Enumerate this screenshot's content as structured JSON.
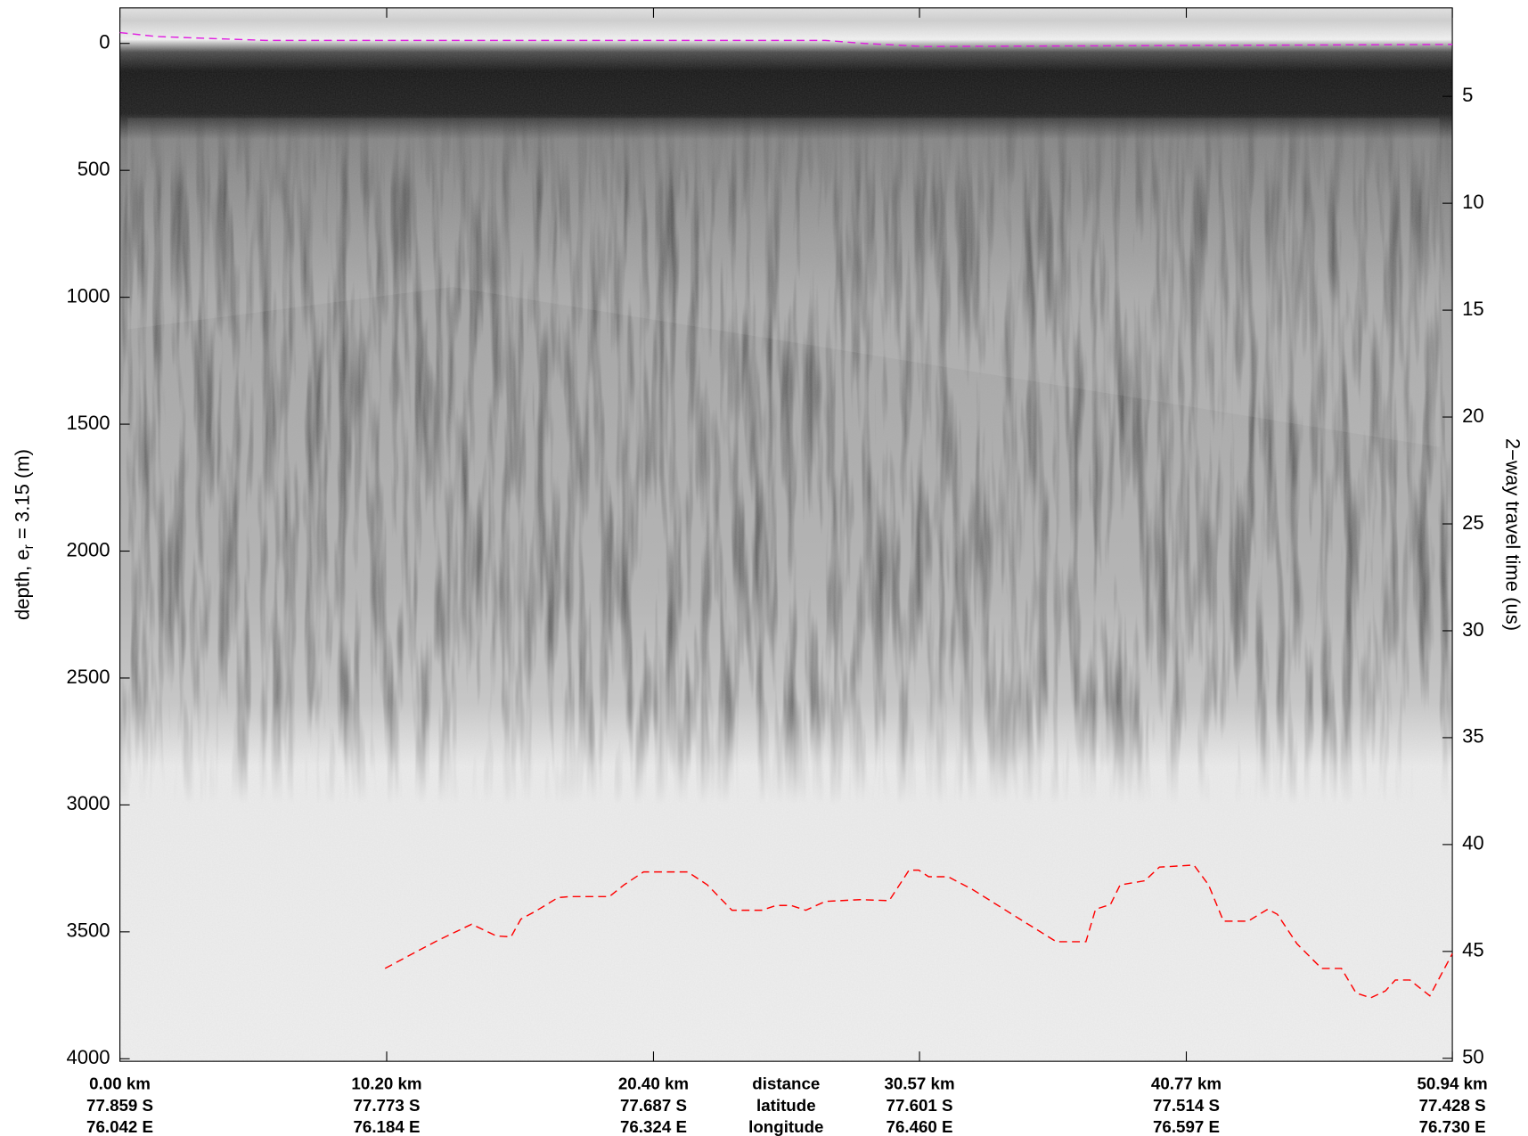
{
  "chart_data": {
    "type": "line",
    "ylabel": {
      "main": "depth, e",
      "sub": "r",
      "rest": " = 3.15 (m)"
    },
    "y2label": "2−way travel time (us)",
    "xlabel": [
      "distance",
      "latitude",
      "longitude"
    ],
    "xlim": [
      0,
      50.94
    ],
    "xticks": [
      {
        "value": 0,
        "label": "0.00 km"
      },
      {
        "value": 10.2,
        "label": "10.20 km"
      },
      {
        "value": 20.4,
        "label": "20.40 km"
      },
      {
        "value": 30.57,
        "label": "30.57 km"
      },
      {
        "value": 40.77,
        "label": "40.77 km"
      },
      {
        "value": 50.94,
        "label": "50.94 km"
      }
    ],
    "x_tick_latitudes": [
      "77.859 S",
      "77.773 S",
      "77.687 S",
      "77.601 S",
      "77.514 S",
      "77.428 S"
    ],
    "x_tick_longitudes": [
      "76.042 E",
      "76.184 E",
      "76.324 E",
      "76.460 E",
      "76.597 E",
      "76.730 E"
    ],
    "ylim": [
      -140,
      4010
    ],
    "y_inverted": true,
    "yticks": [
      0,
      500,
      1000,
      1500,
      2000,
      2500,
      3000,
      3500,
      4000
    ],
    "y2lim": [
      0.86,
      50.14
    ],
    "y2ticks": [
      5,
      10,
      15,
      20,
      25,
      30,
      35,
      40,
      45,
      50
    ],
    "series": [
      {
        "color": "#e020e0",
        "x": [
          0,
          1.43,
          5.56,
          26.97,
          28.47,
          30.73,
          50.94
        ],
        "values": [
          -43,
          -27,
          -12,
          -12,
          0,
          12,
          4
        ]
      },
      {
        "color": "#ff0000",
        "x": [
          10.14,
          11.19,
          12.13,
          13.45,
          14.39,
          14.95,
          15.33,
          15.89,
          16.75,
          17.21,
          18.71,
          19.27,
          20.02,
          21.71,
          22.46,
          23.4,
          24.53,
          25.09,
          25.66,
          26.22,
          26.97,
          28.29,
          29.41,
          30.17,
          30.54,
          30.92,
          31.67,
          32.61,
          34.11,
          35.8,
          36.93,
          37.3,
          37.87,
          38.24,
          39.18,
          39.74,
          41.06,
          41.62,
          42.19,
          43.13,
          43.88,
          44.25,
          45.0,
          45.94,
          46.7,
          47.26,
          47.82,
          48.38,
          48.76,
          49.32,
          50.08,
          50.94
        ],
        "values": [
          3644,
          3586,
          3535,
          3470,
          3516,
          3520,
          3450,
          3419,
          3365,
          3361,
          3361,
          3315,
          3264,
          3264,
          3315,
          3415,
          3415,
          3396,
          3396,
          3415,
          3380,
          3373,
          3377,
          3257,
          3257,
          3283,
          3283,
          3334,
          3431,
          3539,
          3539,
          3411,
          3392,
          3315,
          3299,
          3245,
          3237,
          3315,
          3458,
          3458,
          3411,
          3431,
          3547,
          3644,
          3644,
          3741,
          3760,
          3733,
          3690,
          3690,
          3752,
          3586
        ]
      }
    ]
  }
}
